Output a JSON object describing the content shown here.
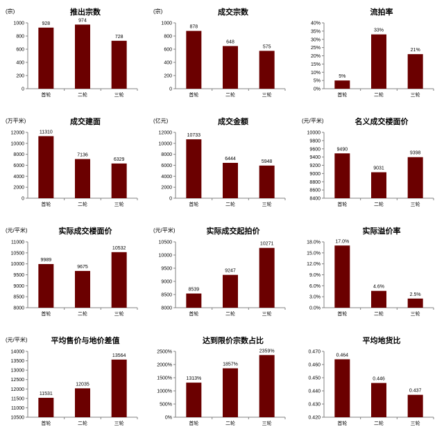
{
  "chart_data": [
    {
      "type": "bar",
      "title": "推出宗数",
      "unit": "(宗)",
      "categories": [
        "首轮",
        "二轮",
        "三轮"
      ],
      "values": [
        928,
        974,
        728
      ],
      "value_labels": [
        "928",
        "974",
        "728"
      ],
      "ylim": [
        0,
        1000
      ],
      "ticks": [
        "0",
        "200",
        "400",
        "600",
        "800",
        "1000"
      ],
      "grid": false,
      "legend": "none"
    },
    {
      "type": "bar",
      "title": "成交宗数",
      "unit": "(宗)",
      "categories": [
        "首轮",
        "二轮",
        "三轮"
      ],
      "values": [
        878,
        648,
        575
      ],
      "value_labels": [
        "878",
        "648",
        "575"
      ],
      "ylim": [
        0,
        1000
      ],
      "ticks": [
        "0",
        "200",
        "400",
        "600",
        "800",
        "1000"
      ],
      "grid": false,
      "legend": "none"
    },
    {
      "type": "bar",
      "title": "流拍率",
      "unit": "",
      "categories": [
        "首轮",
        "二轮",
        "三轮"
      ],
      "values": [
        5,
        33,
        21
      ],
      "value_labels": [
        "5%",
        "33%",
        "21%"
      ],
      "ylim": [
        0,
        40
      ],
      "ticks": [
        "0%",
        "5%",
        "10%",
        "15%",
        "20%",
        "25%",
        "30%",
        "35%",
        "40%"
      ],
      "grid": false,
      "legend": "none"
    },
    {
      "type": "bar",
      "title": "成交建面",
      "unit": "(万平米)",
      "categories": [
        "首轮",
        "二轮",
        "三轮"
      ],
      "values": [
        11310,
        7136,
        6329
      ],
      "value_labels": [
        "11310",
        "7136",
        "6329"
      ],
      "ylim": [
        0,
        12000
      ],
      "ticks": [
        "0",
        "2000",
        "4000",
        "6000",
        "8000",
        "10000",
        "12000"
      ],
      "grid": false,
      "legend": "none"
    },
    {
      "type": "bar",
      "title": "成交金额",
      "unit": "(亿元)",
      "categories": [
        "首轮",
        "二轮",
        "三轮"
      ],
      "values": [
        10733,
        6444,
        5948
      ],
      "value_labels": [
        "10733",
        "6444",
        "5948"
      ],
      "ylim": [
        0,
        12000
      ],
      "ticks": [
        "0",
        "2000",
        "4000",
        "6000",
        "8000",
        "10000",
        "12000"
      ],
      "grid": false,
      "legend": "none"
    },
    {
      "type": "bar",
      "title": "名义成交楼面价",
      "unit": "(元/平米)",
      "categories": [
        "首轮",
        "二轮",
        "三轮"
      ],
      "values": [
        9490,
        9031,
        9398
      ],
      "value_labels": [
        "9490",
        "9031",
        "9398"
      ],
      "ylim": [
        8400,
        10000
      ],
      "ticks": [
        "8400",
        "8600",
        "8800",
        "9000",
        "9200",
        "9400",
        "9600",
        "9800",
        "10000"
      ],
      "grid": false,
      "legend": "none"
    },
    {
      "type": "bar",
      "title": "实际成交楼面价",
      "unit": "(元/平米)",
      "categories": [
        "首轮",
        "二轮",
        "三轮"
      ],
      "values": [
        9989,
        9675,
        10532
      ],
      "value_labels": [
        "9989",
        "9675",
        "10532"
      ],
      "ylim": [
        8000,
        11000
      ],
      "ticks": [
        "8000",
        "8500",
        "9000",
        "9500",
        "10000",
        "10500",
        "11000"
      ],
      "grid": false,
      "legend": "none"
    },
    {
      "type": "bar",
      "title": "实际成交起拍价",
      "unit": "(元/平米)",
      "categories": [
        "首轮",
        "二轮",
        "三轮"
      ],
      "values": [
        8539,
        9247,
        10271
      ],
      "value_labels": [
        "8539",
        "9247",
        "10271"
      ],
      "ylim": [
        8000,
        10500
      ],
      "ticks": [
        "8000",
        "8500",
        "9000",
        "9500",
        "10000",
        "10500"
      ],
      "grid": false,
      "legend": "none"
    },
    {
      "type": "bar",
      "title": "实际溢价率",
      "unit": "",
      "categories": [
        "首轮",
        "二轮",
        "三轮"
      ],
      "values": [
        17.0,
        4.6,
        2.5
      ],
      "value_labels": [
        "17.0%",
        "4.6%",
        "2.5%"
      ],
      "ylim": [
        0,
        18
      ],
      "ticks": [
        "0.0%",
        "3.0%",
        "6.0%",
        "9.0%",
        "12.0%",
        "15.0%",
        "18.0%"
      ],
      "grid": false,
      "legend": "none"
    },
    {
      "type": "bar",
      "title": "平均售价与地价差值",
      "unit": "(元/平米)",
      "categories": [
        "首轮",
        "二轮",
        "三轮"
      ],
      "values": [
        11531,
        12035,
        13564
      ],
      "value_labels": [
        "11531",
        "12035",
        "13564"
      ],
      "ylim": [
        10500,
        14000
      ],
      "ticks": [
        "10500",
        "11000",
        "11500",
        "12000",
        "12500",
        "13000",
        "13500",
        "14000"
      ],
      "grid": false,
      "legend": "none"
    },
    {
      "type": "bar",
      "title": "达到限价宗数占比",
      "unit": "",
      "categories": [
        "首轮",
        "二轮",
        "三轮"
      ],
      "values": [
        1313,
        1857,
        2359
      ],
      "value_labels": [
        "1313%",
        "1857%",
        "2359%"
      ],
      "ylim": [
        0,
        2500
      ],
      "ticks": [
        "0%",
        "500%",
        "1000%",
        "1500%",
        "2000%",
        "2500%"
      ],
      "grid": false,
      "legend": "none"
    },
    {
      "type": "bar",
      "title": "平均地货比",
      "unit": "",
      "categories": [
        "首轮",
        "二轮",
        "三轮"
      ],
      "values": [
        0.464,
        0.446,
        0.437
      ],
      "value_labels": [
        "0.464",
        "0.446",
        "0.437"
      ],
      "ylim": [
        0.42,
        0.47
      ],
      "ticks": [
        "0.420",
        "0.430",
        "0.440",
        "0.450",
        "0.460",
        "0.470"
      ],
      "grid": false,
      "legend": "none"
    }
  ],
  "colors": {
    "bar": "#6b0000",
    "axis": "#808080",
    "text": "#000000"
  }
}
